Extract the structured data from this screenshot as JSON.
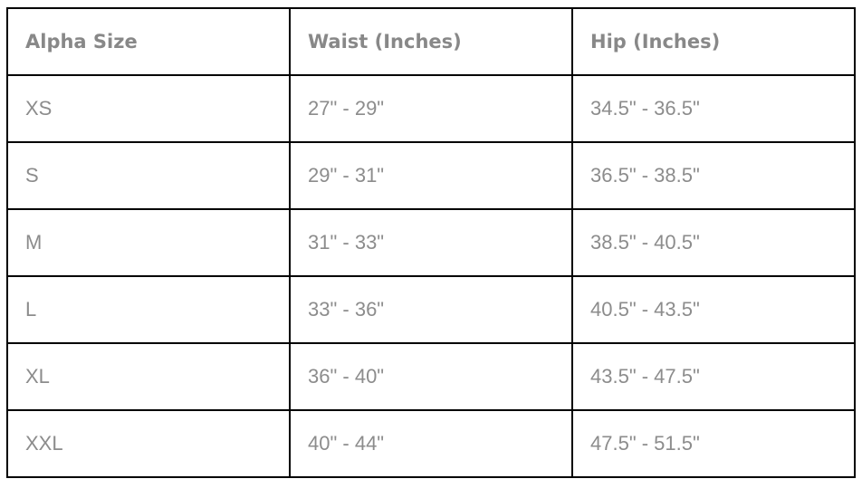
{
  "table": {
    "headers": [
      "Alpha Size",
      "Waist (Inches)",
      "Hip (Inches)"
    ],
    "rows": [
      [
        "XS",
        "27\" - 29\"",
        "34.5\" - 36.5\""
      ],
      [
        "S",
        "29\" - 31\"",
        "36.5\" - 38.5\""
      ],
      [
        "M",
        "31\" - 33\"",
        "38.5\" - 40.5\""
      ],
      [
        "L",
        "33\" - 36\"",
        "40.5\" - 43.5\""
      ],
      [
        "XL",
        "36\" - 40\"",
        "43.5\" - 47.5\""
      ],
      [
        "XXL",
        "40\" - 44\"",
        "47.5\" - 51.5\""
      ]
    ]
  }
}
